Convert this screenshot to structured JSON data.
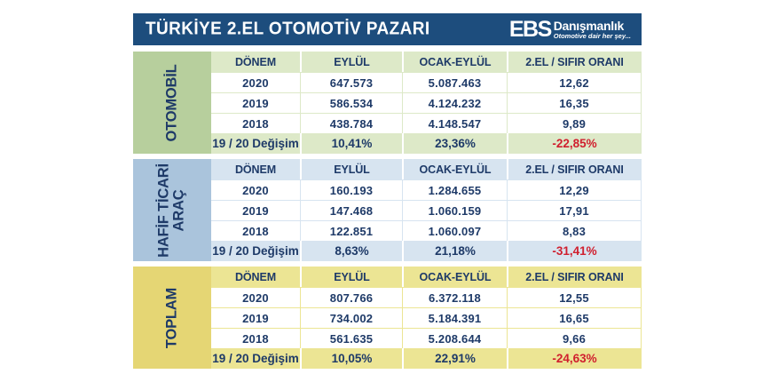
{
  "header": {
    "title": "TÜRKİYE 2.EL OTOMOTİV PAZARI",
    "logo_ebs": "EBS",
    "logo_name": "Danışmanlık",
    "logo_tagline": "Otomotive dair her şey..."
  },
  "colors": {
    "header_bar": "#1d4d7d",
    "text_navy": "#1e3a68",
    "negative_red": "#d01f2e",
    "otomobil_label": "#b7cf9d",
    "otomobil_tint": "#dde9c8",
    "hafif_ticari_label": "#aac4dc",
    "hafif_ticari_tint": "#d7e4f0",
    "toplam_label": "#e5d674",
    "toplam_tint": "#ece594"
  },
  "chart_data": {
    "type": "table",
    "title": "TÜRKİYE 2.EL OTOMOTİV PAZARI",
    "columns": [
      "DÖNEM",
      "EYLÜL",
      "OCAK-EYLÜL",
      "2.EL / SIFIR ORANI"
    ],
    "sections": [
      {
        "label": "OTOMOBİL",
        "rows": [
          [
            "2020",
            "647.573",
            "5.087.463",
            "12,62"
          ],
          [
            "2019",
            "586.534",
            "4.124.232",
            "16,35"
          ],
          [
            "2018",
            "438.784",
            "4.148.547",
            "9,89"
          ],
          [
            "19 / 20 Değişim",
            "10,41%",
            "23,36%",
            "-22,85%"
          ]
        ]
      },
      {
        "label": "HAFİF TİCARİ ARAÇ",
        "rows": [
          [
            "2020",
            "160.193",
            "1.284.655",
            "12,29"
          ],
          [
            "2019",
            "147.468",
            "1.060.159",
            "17,91"
          ],
          [
            "2018",
            "122.851",
            "1.060.097",
            "8,83"
          ],
          [
            "19 / 20 Değişim",
            "8,63%",
            "21,18%",
            "-31,41%"
          ]
        ]
      },
      {
        "label": "TOPLAM",
        "rows": [
          [
            "2020",
            "807.766",
            "6.372.118",
            "12,55"
          ],
          [
            "2019",
            "734.002",
            "5.184.391",
            "16,65"
          ],
          [
            "2018",
            "561.635",
            "5.208.644",
            "9,66"
          ],
          [
            "19 / 20 Değişim",
            "10,05%",
            "22,91%",
            "-24,63%"
          ]
        ]
      }
    ]
  }
}
